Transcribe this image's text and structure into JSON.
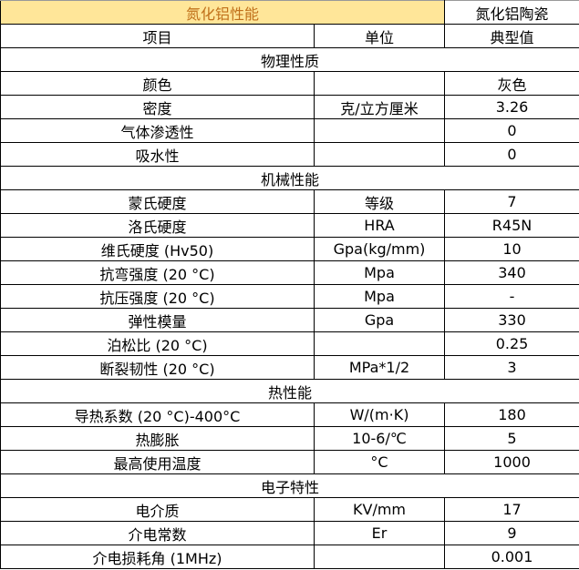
{
  "header": {
    "title": "氮化铝性能",
    "material": "氮化铝陶瓷"
  },
  "columns": {
    "item": "项目",
    "unit": "单位",
    "value": "典型值"
  },
  "colors": {
    "title_fill": "#ffe699",
    "title_text": "#c0701a"
  },
  "rows": [
    {
      "section": "物理性质"
    },
    {
      "item": "颜色",
      "unit": "",
      "value": "灰色"
    },
    {
      "item": "密度",
      "unit": "克/立方厘米",
      "value": "3.26"
    },
    {
      "item": "气体渗透性",
      "unit": "",
      "value": "0"
    },
    {
      "item": "吸水性",
      "unit": "",
      "value": "0"
    },
    {
      "section": "机械性能"
    },
    {
      "item": "蒙氏硬度",
      "unit": "等级",
      "value": "7"
    },
    {
      "item": "洛氏硬度",
      "unit": "HRA",
      "value": "R45N"
    },
    {
      "item": "维氏硬度 (Hv50)",
      "unit": "Gpa(kg/mm)",
      "value": "10"
    },
    {
      "item": "抗弯强度 (20 °C)",
      "unit": "Mpa",
      "value": "340"
    },
    {
      "item": "抗压强度 (20 °C)",
      "unit": "Mpa",
      "value": "-"
    },
    {
      "item": "弹性模量",
      "unit": "Gpa",
      "value": "330"
    },
    {
      "item": "泊松比 (20 °C)",
      "unit": "",
      "value": "0.25"
    },
    {
      "item": "断裂韧性 (20 °C)",
      "unit": "MPa*1/2",
      "value": "3"
    },
    {
      "section": "热性能"
    },
    {
      "item": "导热系数 (20 °C)-400°C",
      "unit": "W/(m·K)",
      "value": "180"
    },
    {
      "item": "热膨胀",
      "unit": "10-6/℃",
      "value": "5"
    },
    {
      "item": "最高使用温度",
      "unit": "°C",
      "value": "1000"
    },
    {
      "section": "电子特性"
    },
    {
      "item": "电介质",
      "unit": "KV/mm",
      "value": "17"
    },
    {
      "item": "介电常数",
      "unit": "Er",
      "value": "9"
    },
    {
      "item": "介电损耗角 (1MHz)",
      "unit": "",
      "value": "0.001"
    }
  ]
}
